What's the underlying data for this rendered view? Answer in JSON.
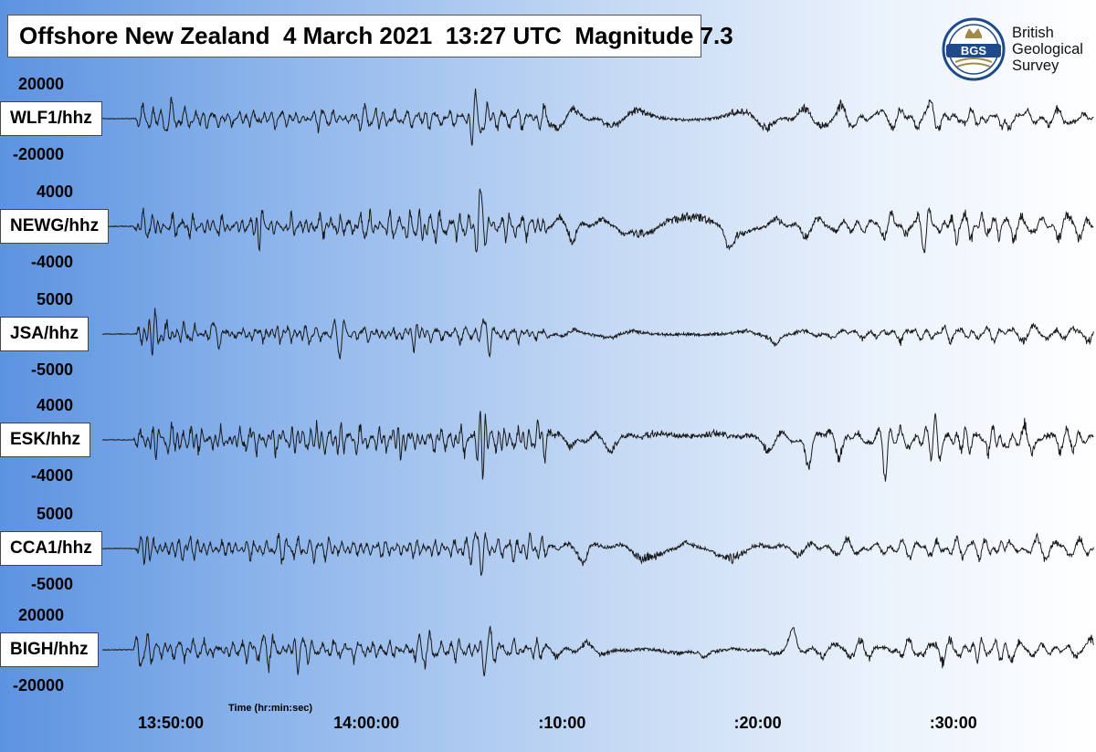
{
  "header": {
    "title": "Offshore New Zealand  4 March 2021  13:27 UTC  Magnitude 7.3"
  },
  "logo": {
    "abbr": "BGS",
    "line1": "British",
    "line2": "Geological",
    "line3": "Survey",
    "ring_color": "#1c4a8a",
    "accent_color": "#a08a4a"
  },
  "chart_data": {
    "type": "line",
    "title": "Offshore New Zealand  4 March 2021  13:27 UTC  Magnitude 7.3",
    "xlabel": "Time (hr:min:sec)",
    "x_ticks": [
      "13:50:00",
      "14:00:00",
      ":10:00",
      ":20:00",
      ":30:00"
    ],
    "x_tick_minutes": [
      50,
      60,
      70,
      80,
      90
    ],
    "x_range_minutes": [
      46.5,
      97.2
    ],
    "trace_color": "#1a1a1a",
    "series": [
      {
        "name": "WLF1/hhz",
        "ylim": [
          -20000,
          20000
        ],
        "tick_labels": [
          "20000",
          "-20000"
        ],
        "onset_minute": 48.2,
        "seed": 11
      },
      {
        "name": "NEWG/hhz",
        "ylim": [
          -4000,
          4000
        ],
        "tick_labels": [
          "4000",
          "-4000"
        ],
        "onset_minute": 48.1,
        "seed": 23
      },
      {
        "name": "JSA/hhz",
        "ylim": [
          -5000,
          5000
        ],
        "tick_labels": [
          "5000",
          "-5000"
        ],
        "onset_minute": 48.2,
        "seed": 37
      },
      {
        "name": "ESK/hhz",
        "ylim": [
          -4000,
          4000
        ],
        "tick_labels": [
          "4000",
          "-4000"
        ],
        "onset_minute": 48.1,
        "seed": 41
      },
      {
        "name": "CCA1/hhz",
        "ylim": [
          -5000,
          5000
        ],
        "tick_labels": [
          "5000",
          "-5000"
        ],
        "onset_minute": 48.2,
        "seed": 53
      },
      {
        "name": "BIGH/hhz",
        "ylim": [
          -20000,
          20000
        ],
        "tick_labels": [
          "20000",
          "-20000"
        ],
        "onset_minute": 48.1,
        "seed": 67
      }
    ]
  }
}
